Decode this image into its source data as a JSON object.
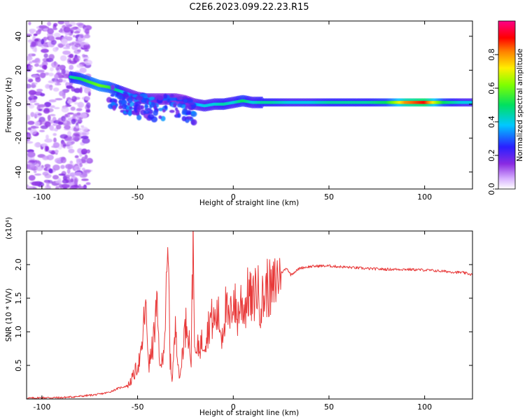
{
  "figure_title": "C2E6.2023.099.22.23.R15",
  "colors": {
    "snr_line": "#e83a3a",
    "frame": "#000000",
    "background": "#ffffff"
  },
  "chart_data": [
    {
      "type": "heatmap",
      "title": "",
      "xlabel": "Height of straight line (km)",
      "ylabel": "Frequency (Hz)",
      "xlim": [
        -108,
        125
      ],
      "ylim": [
        -50,
        49
      ],
      "x_ticks": [
        -100,
        -50,
        0,
        50,
        100
      ],
      "x_tick_labels": [
        "-100",
        "-50",
        "0",
        "50",
        "100"
      ],
      "y_ticks": [
        -40,
        -20,
        0,
        20,
        40
      ],
      "y_tick_labels": [
        "-40",
        "-20",
        "0",
        "20",
        "40"
      ],
      "grid": false,
      "colormap": "rainbow (white-purple-blue-cyan-green-yellow-red-magenta)",
      "colorbar": {
        "label": "Normalized spectral amplitude",
        "range": [
          0,
          1
        ],
        "ticks": [
          0,
          0.2,
          0.4,
          0.6,
          0.8
        ],
        "tick_labels": [
          "0.0",
          "0.2",
          "0.4",
          "0.6",
          "0.8"
        ]
      },
      "ridge": {
        "description": "Dominant spectral band: frequency versus height",
        "x": [
          -85,
          -80,
          -75,
          -70,
          -65,
          -60,
          -55,
          -50,
          -45,
          -40,
          -35,
          -30,
          -25,
          -20,
          -15,
          -10,
          -5,
          0,
          5,
          10,
          15,
          20,
          30,
          40,
          50,
          60,
          70,
          80,
          90,
          100,
          110,
          120
        ],
        "y": [
          16,
          15,
          13,
          11,
          10,
          8,
          6,
          4,
          3,
          3,
          3,
          3,
          2,
          0,
          -1,
          0,
          0,
          1,
          2,
          1,
          1,
          1,
          1,
          1,
          1,
          1,
          1,
          1,
          1,
          1,
          1,
          1
        ],
        "amplitude": [
          0.45,
          0.5,
          0.55,
          0.6,
          0.55,
          0.45,
          0.35,
          0.3,
          0.35,
          0.3,
          0.3,
          0.3,
          0.25,
          0.35,
          0.4,
          0.4,
          0.45,
          0.4,
          0.5,
          0.4,
          0.45,
          0.45,
          0.4,
          0.4,
          0.45,
          0.45,
          0.45,
          0.5,
          0.8,
          0.9,
          0.5,
          0.4
        ]
      },
      "noise_region": {
        "description": "Scattered low-amplitude noise across all frequencies",
        "x_range": [
          -108,
          -75
        ],
        "amplitude": 0.1
      }
    },
    {
      "type": "line",
      "title": "",
      "xlabel": "Height of straight line (km)",
      "ylabel": "SNR (10 * V/V)",
      "y_scale_label": "(x10⁴)",
      "xlim": [
        -108,
        125
      ],
      "ylim": [
        0,
        2.5
      ],
      "x_ticks": [
        -100,
        -50,
        0,
        50,
        100
      ],
      "x_tick_labels": [
        "-100",
        "-50",
        "0",
        "50",
        "100"
      ],
      "y_ticks": [
        0.5,
        1.0,
        1.5,
        2.0
      ],
      "y_tick_labels": [
        "0.5",
        "1.0",
        "1.5",
        "2.0"
      ],
      "grid": false,
      "series": [
        {
          "x": [
            -108,
            -100,
            -90,
            -80,
            -70,
            -65,
            -60,
            -55,
            -52,
            -50,
            -48,
            -46,
            -44,
            -42,
            -40,
            -38,
            -36,
            -34,
            -33,
            -32,
            -30,
            -28,
            -26,
            -24,
            -22,
            -21,
            -20,
            -18,
            -16,
            -14,
            -12,
            -10,
            -8,
            -6,
            -4,
            -2,
            0,
            2,
            4,
            6,
            8,
            10,
            12,
            14,
            16,
            18,
            20,
            22,
            24,
            26,
            28,
            30,
            35,
            40,
            45,
            50,
            55,
            60,
            70,
            80,
            90,
            100,
            110,
            120,
            125
          ],
          "y": [
            0.01,
            0.02,
            0.02,
            0.04,
            0.07,
            0.1,
            0.16,
            0.2,
            0.35,
            0.5,
            0.65,
            1.4,
            0.5,
            0.8,
            1.35,
            0.4,
            0.9,
            2.1,
            0.6,
            0.3,
            1.1,
            0.25,
            0.9,
            1.2,
            0.55,
            2.45,
            0.6,
            0.8,
            0.85,
            0.95,
            1.2,
            1.15,
            1.25,
            0.95,
            1.35,
            1.1,
            1.55,
            1.2,
            1.45,
            1.35,
            1.6,
            1.4,
            1.7,
            1.45,
            1.5,
            1.7,
            1.55,
            1.75,
            1.85,
            1.9,
            1.95,
            1.85,
            1.95,
            1.97,
            1.98,
            1.98,
            1.97,
            1.96,
            1.94,
            1.93,
            1.93,
            1.92,
            1.9,
            1.88,
            1.85
          ]
        }
      ]
    }
  ]
}
